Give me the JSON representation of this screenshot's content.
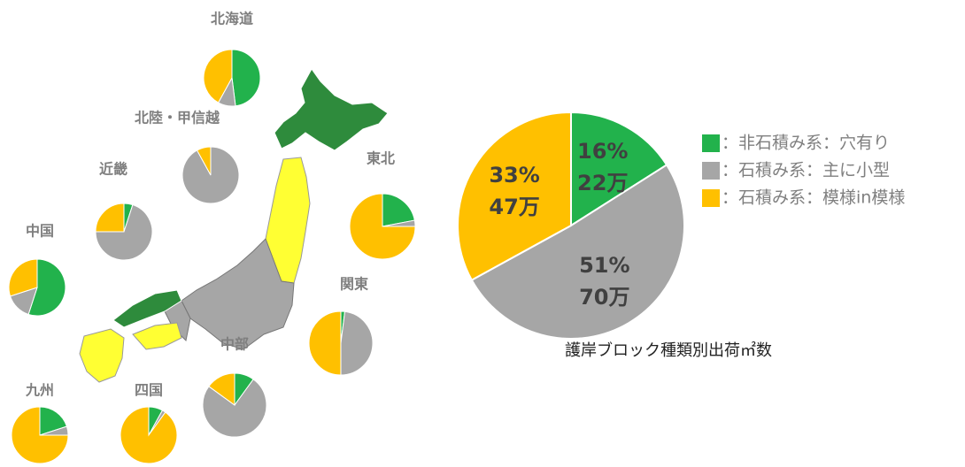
{
  "chart_data": [
    {
      "type": "pie",
      "title": "護岸ブロック種類別出荷㎡数",
      "categories": [
        "：非石積み系：穴有り",
        "：石積み系：主に小型",
        "：石積み系：模様in模様"
      ],
      "values": [
        16,
        51,
        33
      ],
      "value_labels": [
        "16%",
        "51%",
        "33%"
      ],
      "amounts": [
        22,
        70,
        47
      ],
      "amount_labels": [
        "22万",
        "70万",
        "47万"
      ],
      "colors": [
        "#22b24c",
        "#a6a6a6",
        "#ffc000"
      ]
    },
    {
      "type": "pie",
      "title": "北海道",
      "values": [
        48,
        10,
        42
      ],
      "colors": [
        "#22b24c",
        "#a6a6a6",
        "#ffc000"
      ]
    },
    {
      "type": "pie",
      "title": "北陸・甲信越",
      "values": [
        0,
        92,
        8
      ],
      "colors": [
        "#22b24c",
        "#a6a6a6",
        "#ffc000"
      ]
    },
    {
      "type": "pie",
      "title": "東北",
      "values": [
        22,
        3,
        75
      ],
      "colors": [
        "#22b24c",
        "#a6a6a6",
        "#ffc000"
      ]
    },
    {
      "type": "pie",
      "title": "近畿",
      "values": [
        5,
        70,
        25
      ],
      "colors": [
        "#22b24c",
        "#a6a6a6",
        "#ffc000"
      ]
    },
    {
      "type": "pie",
      "title": "中国",
      "values": [
        55,
        15,
        30
      ],
      "colors": [
        "#22b24c",
        "#a6a6a6",
        "#ffc000"
      ]
    },
    {
      "type": "pie",
      "title": "関東",
      "values": [
        2,
        48,
        50
      ],
      "colors": [
        "#22b24c",
        "#a6a6a6",
        "#ffc000"
      ]
    },
    {
      "type": "pie",
      "title": "中部",
      "values": [
        10,
        75,
        15
      ],
      "colors": [
        "#22b24c",
        "#a6a6a6",
        "#ffc000"
      ]
    },
    {
      "type": "pie",
      "title": "九州",
      "values": [
        20,
        5,
        75
      ],
      "colors": [
        "#22b24c",
        "#a6a6a6",
        "#ffc000"
      ]
    },
    {
      "type": "pie",
      "title": "四国",
      "values": [
        8,
        2,
        90
      ],
      "colors": [
        "#22b24c",
        "#a6a6a6",
        "#ffc000"
      ]
    }
  ]
}
